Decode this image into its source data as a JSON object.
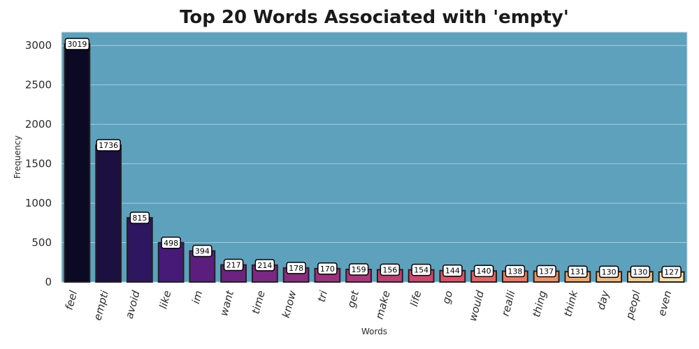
{
  "chart_data": {
    "type": "bar",
    "title": "Top 20 Words Associated with 'empty'",
    "xlabel": "Words",
    "ylabel": "Frequency",
    "categories": [
      "feel",
      "empti",
      "avoid",
      "like",
      "im",
      "want",
      "time",
      "know",
      "tri",
      "get",
      "make",
      "life",
      "go",
      "would",
      "realli",
      "thing",
      "think",
      "day",
      "peopl",
      "even"
    ],
    "values": [
      3019,
      1736,
      815,
      498,
      394,
      217,
      214,
      178,
      170,
      159,
      156,
      154,
      144,
      140,
      138,
      137,
      131,
      130,
      130,
      127
    ],
    "ylim": [
      0,
      3170
    ],
    "yticks": [
      0,
      500,
      1000,
      1500,
      2000,
      2500,
      3000
    ],
    "grid": true,
    "data_labels": true,
    "colors": {
      "plot_background": "#5ea1bd",
      "gridline": "#a9cddb",
      "bar_edge": "#222222",
      "palette": [
        "#0b0924",
        "#1c1040",
        "#2e1660",
        "#461a76",
        "#5b1e7d",
        "#6b2380",
        "#7a2881",
        "#8a2d80",
        "#9c327e",
        "#ac377a",
        "#bf3e74",
        "#d0466e",
        "#de5268",
        "#e76462",
        "#ee7a5f",
        "#f19062",
        "#f4a56a",
        "#f6b879",
        "#f7cc8c",
        "#fadea2"
      ]
    }
  }
}
